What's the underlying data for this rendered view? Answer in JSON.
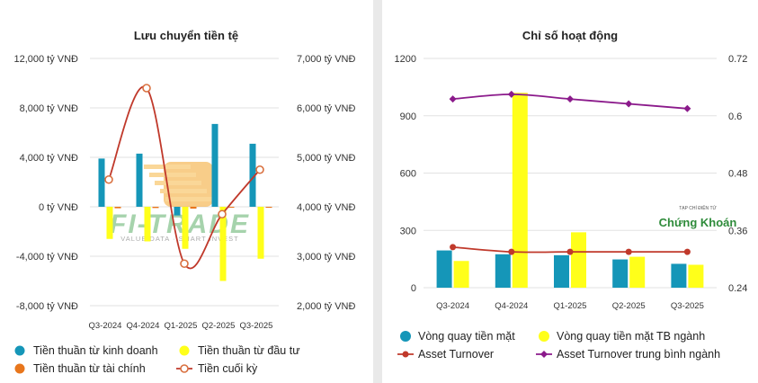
{
  "watermark_left": {
    "brand": "FI-TRADE",
    "tagline": "VALUE DATA · SMART INVEST"
  },
  "watermark_right": {
    "top": "TẠP CHÍ ĐIỆN TỬ",
    "brand": "Chứng Khoán"
  },
  "colors": {
    "teal": "#1596b8",
    "yellow": "#ffff1a",
    "orange": "#e8761c",
    "red_line": "#c0392b",
    "purple_line": "#8b1a8b",
    "grid": "#e2e2e2"
  },
  "chart_data": [
    {
      "type": "bar",
      "title": "Lưu chuyển tiền tệ",
      "categories": [
        "Q3-2024",
        "Q4-2024",
        "Q1-2025",
        "Q2-2025",
        "Q3-2025"
      ],
      "y_left": {
        "min": -8000,
        "max": 12000,
        "ticks": [
          -8000,
          -4000,
          0,
          4000,
          8000,
          12000
        ],
        "tick_labels": [
          "-8,000 tỷ VNĐ",
          "-4,000 tỷ VNĐ",
          "0 tỷ VNĐ",
          "4,000 tỷ VNĐ",
          "8,000 tỷ VNĐ",
          "12,000 tỷ VNĐ"
        ]
      },
      "y_right": {
        "min": 2000,
        "max": 7000,
        "ticks": [
          2000,
          3000,
          4000,
          5000,
          6000,
          7000
        ],
        "tick_labels": [
          "2,000 tỷ VNĐ",
          "3,000 tỷ VNĐ",
          "4,000 tỷ VNĐ",
          "5,000 tỷ VNĐ",
          "6,000 tỷ VNĐ",
          "7,000 tỷ VNĐ"
        ]
      },
      "series": [
        {
          "name": "Tiền thuần từ kinh doanh",
          "kind": "bar",
          "axis": "left",
          "values": [
            3900,
            4300,
            -700,
            6700,
            5100
          ]
        },
        {
          "name": "Tiền thuần từ đầu tư",
          "kind": "bar",
          "axis": "left",
          "values": [
            -2600,
            -2800,
            -3400,
            -6000,
            -4200
          ]
        },
        {
          "name": "Tiền thuần từ tài chính",
          "kind": "bar",
          "axis": "left",
          "values": [
            -120,
            -100,
            -150,
            -60,
            -80
          ]
        },
        {
          "name": "Tiền cuối kỳ",
          "kind": "line",
          "axis": "right",
          "values": [
            4550,
            6400,
            2850,
            3850,
            4750
          ]
        }
      ]
    },
    {
      "type": "bar",
      "title": "Chỉ số hoạt động",
      "categories": [
        "Q3-2024",
        "Q4-2024",
        "Q1-2025",
        "Q2-2025",
        "Q3-2025"
      ],
      "y_left": {
        "min": 0,
        "max": 1200,
        "ticks": [
          0,
          300,
          600,
          900,
          1200
        ],
        "tick_labels": [
          "0",
          "300",
          "600",
          "900",
          "1200"
        ]
      },
      "y_right": {
        "min": 0.24,
        "max": 0.72,
        "ticks": [
          0.24,
          0.36,
          0.48,
          0.6,
          0.72
        ],
        "tick_labels": [
          "0.24",
          "0.36",
          "0.48",
          "0.6",
          "0.72"
        ]
      },
      "series": [
        {
          "name": "Vòng quay tiền mặt",
          "kind": "bar",
          "axis": "left",
          "values": [
            195,
            175,
            170,
            148,
            125
          ]
        },
        {
          "name": "Vòng quay tiền mặt TB ngành",
          "kind": "bar",
          "axis": "left",
          "values": [
            140,
            1020,
            290,
            162,
            120
          ]
        },
        {
          "name": "Asset Turnover",
          "kind": "line",
          "axis": "right",
          "values": [
            0.325,
            0.315,
            0.315,
            0.315,
            0.315
          ]
        },
        {
          "name": "Asset Turnover trung bình ngành",
          "kind": "line",
          "axis": "right",
          "values": [
            0.635,
            0.645,
            0.635,
            0.625,
            0.615
          ]
        }
      ]
    }
  ]
}
